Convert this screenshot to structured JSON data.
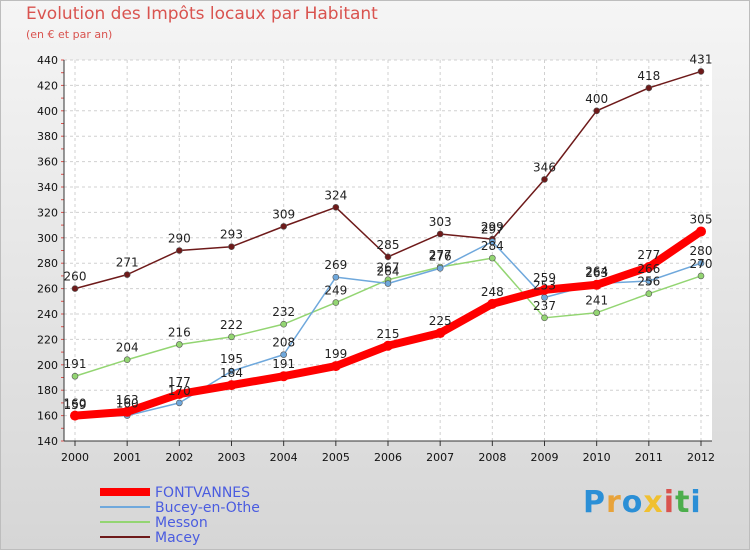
{
  "chart_data": {
    "type": "line",
    "title": "Evolution des Impôts locaux par Habitant",
    "subtitle": "(en € et par an)",
    "xlabel": "",
    "ylabel": "",
    "categories": [
      "2000",
      "2001",
      "2002",
      "2003",
      "2004",
      "2005",
      "2006",
      "2007",
      "2008",
      "2009",
      "2010",
      "2011",
      "2012"
    ],
    "ylim": [
      140,
      440
    ],
    "yticks": [
      140,
      160,
      180,
      200,
      220,
      240,
      260,
      280,
      300,
      320,
      340,
      360,
      380,
      400,
      420,
      440
    ],
    "grid": true,
    "legend_position": "bottom-left",
    "series": [
      {
        "name": "FONTVANNES",
        "color": "#ff0000",
        "values": [
          160,
          163,
          177,
          184,
          191,
          199,
          215,
          225,
          248,
          259,
          263,
          277,
          305
        ]
      },
      {
        "name": "Bucey-en-Othe",
        "color": "#6fa8dc",
        "values": [
          159,
          160,
          170,
          195,
          208,
          269,
          264,
          276,
          297,
          253,
          264,
          266,
          280
        ]
      },
      {
        "name": "Messon",
        "color": "#93d572",
        "values": [
          191,
          204,
          216,
          222,
          232,
          249,
          267,
          277,
          284,
          237,
          241,
          256,
          270
        ]
      },
      {
        "name": "Macey",
        "color": "#6e1a1a",
        "values": [
          260,
          271,
          290,
          293,
          309,
          324,
          285,
          303,
          299,
          346,
          400,
          418,
          431
        ]
      }
    ]
  },
  "logo": {
    "text": "Proxiti",
    "colors": [
      "#2b8fd6",
      "#e8a33a",
      "#2b8fd6",
      "#f0c030",
      "#d9534f",
      "#4cae4c",
      "#2b8fd6"
    ]
  }
}
